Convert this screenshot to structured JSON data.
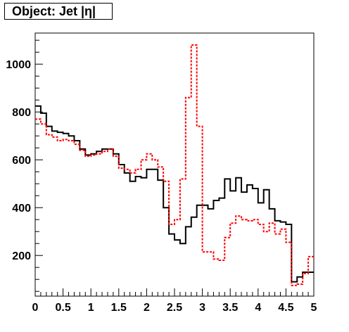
{
  "chart_data": {
    "type": "line",
    "style": "step-histogram",
    "title": "Object: Jet |η|",
    "xlabel": "",
    "ylabel": "",
    "xlim": [
      0,
      5
    ],
    "ylim": [
      30,
      1130
    ],
    "x_ticks": [
      "0",
      "0.5",
      "1",
      "1.5",
      "2",
      "2.5",
      "3",
      "3.5",
      "4",
      "4.5",
      "5"
    ],
    "y_ticks": [
      "200",
      "400",
      "600",
      "800",
      "1000"
    ],
    "bin_width": 0.1,
    "x": [
      0.0,
      0.1,
      0.2,
      0.3,
      0.4,
      0.5,
      0.6,
      0.7,
      0.8,
      0.9,
      1.0,
      1.1,
      1.2,
      1.3,
      1.4,
      1.5,
      1.6,
      1.7,
      1.8,
      1.9,
      2.0,
      2.1,
      2.2,
      2.3,
      2.4,
      2.5,
      2.6,
      2.7,
      2.8,
      2.9,
      3.0,
      3.1,
      3.2,
      3.3,
      3.4,
      3.5,
      3.6,
      3.7,
      3.8,
      3.9,
      4.0,
      4.1,
      4.2,
      4.3,
      4.4,
      4.5,
      4.6,
      4.7,
      4.8,
      4.9
    ],
    "grid": false,
    "series": [
      {
        "color": "#000000",
        "line_style": "solid",
        "values": [
          825,
          795,
          740,
          720,
          715,
          710,
          700,
          680,
          645,
          620,
          625,
          635,
          645,
          645,
          625,
          580,
          545,
          510,
          530,
          525,
          560,
          560,
          515,
          400,
          290,
          265,
          250,
          320,
          360,
          410,
          410,
          395,
          430,
          440,
          520,
          470,
          525,
          465,
          495,
          480,
          420,
          475,
          395,
          345,
          340,
          330,
          90,
          110,
          130,
          130
        ]
      },
      {
        "color": "#ff0000",
        "line_style": "dashed",
        "values": [
          770,
          750,
          705,
          695,
          680,
          685,
          680,
          665,
          640,
          615,
          620,
          625,
          635,
          645,
          615,
          565,
          560,
          545,
          560,
          600,
          625,
          600,
          570,
          510,
          330,
          350,
          520,
          860,
          1080,
          740,
          215,
          215,
          185,
          180,
          275,
          335,
          365,
          350,
          345,
          350,
          330,
          300,
          335,
          290,
          310,
          255,
          75,
          80,
          125,
          195
        ]
      }
    ]
  }
}
